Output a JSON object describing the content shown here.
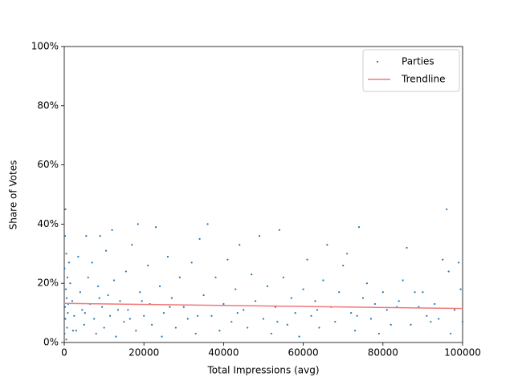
{
  "chart_data": {
    "type": "scatter",
    "xlabel": "Total Impressions (avg)",
    "ylabel": "Share of Votes",
    "xlim": [
      0,
      100000
    ],
    "ylim": [
      0,
      100
    ],
    "xticks": [
      0,
      20000,
      40000,
      60000,
      80000,
      100000
    ],
    "yticks": [
      {
        "value": 0,
        "label": "0%"
      },
      {
        "value": 20,
        "label": "20%"
      },
      {
        "value": 40,
        "label": "40%"
      },
      {
        "value": 60,
        "label": "60%"
      },
      {
        "value": 80,
        "label": "80%"
      },
      {
        "value": 100,
        "label": "100%"
      }
    ],
    "legend": "upper right",
    "series": [
      {
        "name": "Parties",
        "type": "scatter",
        "color": "#1f77b4",
        "x": [
          300,
          200,
          500,
          100,
          800,
          400,
          600,
          200,
          900,
          300,
          700,
          100,
          500,
          1200,
          1500,
          2000,
          2500,
          3000,
          3500,
          4000,
          4500,
          5000,
          5500,
          6000,
          6500,
          7000,
          7500,
          8000,
          8500,
          9000,
          9500,
          10000,
          10500,
          11000,
          11500,
          12000,
          12500,
          13000,
          14000,
          15000,
          15500,
          16000,
          17000,
          18000,
          18500,
          19000,
          20000,
          21000,
          21500,
          22000,
          23000,
          24000,
          24500,
          25000,
          26000,
          27000,
          28000,
          29000,
          30000,
          31000,
          32000,
          33000,
          34000,
          35000,
          36000,
          37000,
          38000,
          39000,
          40000,
          41000,
          42000,
          43000,
          44000,
          45000,
          46000,
          47000,
          48000,
          49000,
          50000,
          51000,
          52000,
          53000,
          54000,
          55000,
          56000,
          57000,
          58000,
          59000,
          60000,
          61000,
          62000,
          63000,
          64000,
          65000,
          66000,
          67000,
          68000,
          69000,
          70000,
          71000,
          72000,
          73000,
          74000,
          75000,
          76000,
          77000,
          78000,
          79000,
          80000,
          81000,
          82000,
          84000,
          85000,
          86000,
          87000,
          88000,
          89000,
          90000,
          91000,
          92000,
          93000,
          94000,
          95000,
          96000,
          96500,
          97000,
          98000,
          99000,
          99500,
          100000,
          1000,
          2200,
          5200,
          8800,
          13500,
          16500,
          19500,
          26500,
          33500,
          43500,
          53500,
          63500,
          73500,
          83500
        ],
        "values": [
          45,
          36,
          30,
          25,
          22,
          18,
          15,
          12,
          10,
          8,
          5,
          3,
          1,
          27,
          20,
          14,
          9,
          4,
          29,
          17,
          11,
          6,
          36,
          22,
          13,
          27,
          8,
          3,
          19,
          36,
          12,
          5,
          31,
          16,
          9,
          38,
          21,
          2,
          14,
          7,
          24,
          11,
          33,
          4,
          40,
          17,
          9,
          26,
          13,
          6,
          39,
          19,
          2,
          10,
          29,
          15,
          5,
          22,
          12,
          8,
          27,
          3,
          35,
          16,
          40,
          9,
          22,
          4,
          13,
          28,
          7,
          18,
          33,
          11,
          5,
          23,
          14,
          36,
          8,
          19,
          3,
          12,
          38,
          22,
          6,
          15,
          10,
          2,
          18,
          28,
          9,
          14,
          5,
          21,
          33,
          12,
          7,
          17,
          26,
          30,
          10,
          4,
          39,
          15,
          20,
          8,
          13,
          3,
          17,
          11,
          6,
          14,
          21,
          32,
          6,
          17,
          12,
          17,
          9,
          7,
          13,
          8,
          28,
          45,
          24,
          3,
          11,
          27,
          18,
          7,
          13,
          4,
          10,
          15,
          11,
          8,
          14,
          12,
          9,
          10,
          7,
          11,
          9,
          12
        ]
      },
      {
        "name": "Trendline",
        "type": "line",
        "color": "#f07878",
        "x": [
          0,
          100000
        ],
        "values": [
          13.2,
          11.5
        ]
      }
    ]
  }
}
